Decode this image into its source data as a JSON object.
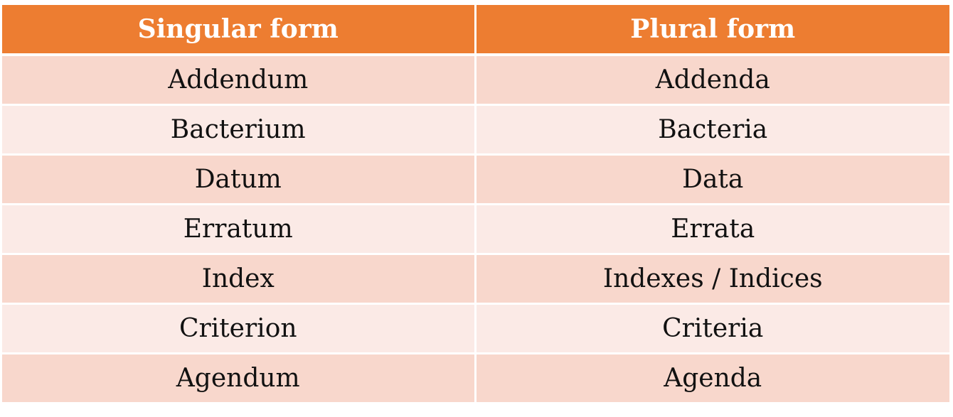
{
  "table": {
    "headers": [
      "Singular form",
      "Plural form"
    ],
    "rows": [
      [
        "Addendum",
        "Addenda"
      ],
      [
        "Bacterium",
        "Bacteria"
      ],
      [
        "Datum",
        "Data"
      ],
      [
        "Erratum",
        "Errata"
      ],
      [
        "Index",
        "Indexes / Indices"
      ],
      [
        "Criterion",
        "Criteria"
      ],
      [
        "Agendum",
        "Agenda"
      ]
    ]
  },
  "colors": {
    "header_background": "#ED7D31",
    "header_text": "#FFFFFF",
    "row_band_dark": "#F8D7CC",
    "row_band_light": "#FBEAE6"
  }
}
